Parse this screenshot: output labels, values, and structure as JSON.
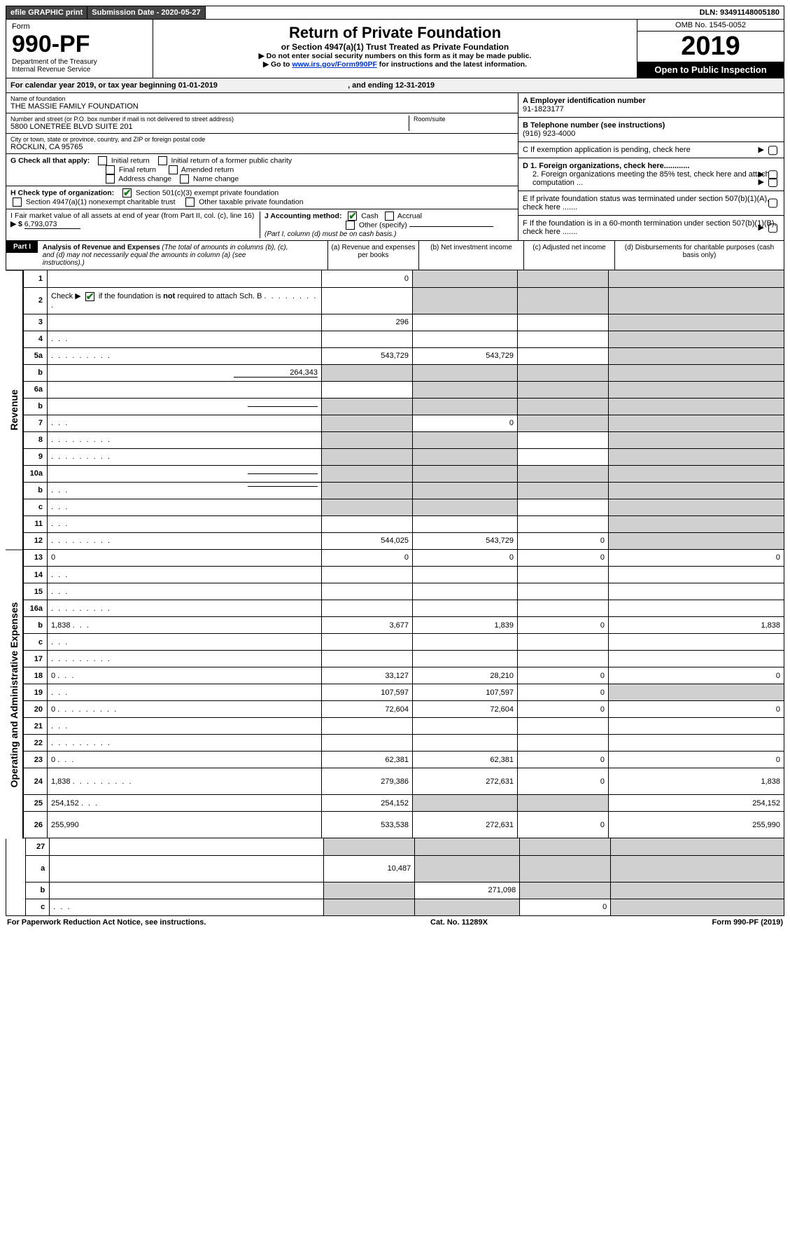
{
  "topbar": {
    "efile": "efile GRAPHIC print",
    "submission_label": "Submission Date - 2020-05-27",
    "dln": "DLN: 93491148005180"
  },
  "header": {
    "form_word": "Form",
    "form_number": "990-PF",
    "dept": "Department of the Treasury",
    "irs": "Internal Revenue Service",
    "title": "Return of Private Foundation",
    "subtitle": "or Section 4947(a)(1) Trust Treated as Private Foundation",
    "instr1": "▶ Do not enter social security numbers on this form as it may be made public.",
    "instr2_pre": "▶ Go to ",
    "instr2_link": "www.irs.gov/Form990PF",
    "instr2_post": " for instructions and the latest information.",
    "omb": "OMB No. 1545-0052",
    "year": "2019",
    "open": "Open to Public Inspection"
  },
  "cal": {
    "text_pre": "For calendar year 2019, or tax year beginning ",
    "begin": "01-01-2019",
    "mid": " , and ending ",
    "end": "12-31-2019"
  },
  "info": {
    "name_label": "Name of foundation",
    "name": "THE MASSIE FAMILY FOUNDATION",
    "addr_label": "Number and street (or P.O. box number if mail is not delivered to street address)",
    "addr": "5800 LONETREE BLVD SUITE 201",
    "room_label": "Room/suite",
    "city_label": "City or town, state or province, country, and ZIP or foreign postal code",
    "city": "ROCKLIN, CA  95765",
    "a_label": "A Employer identification number",
    "ein": "91-1823177",
    "b_label": "B Telephone number (see instructions)",
    "phone": "(916) 923-4000",
    "c_label": "C If exemption application is pending, check here",
    "d1": "D 1. Foreign organizations, check here............",
    "d2": "2. Foreign organizations meeting the 85% test, check here and attach computation ...",
    "e": "E  If private foundation status was terminated under section 507(b)(1)(A), check here .......",
    "f": "F  If the foundation is in a 60-month termination under section 507(b)(1)(B), check here ......."
  },
  "g": {
    "label": "G Check all that apply:",
    "initial": "Initial return",
    "initial_former": "Initial return of a former public charity",
    "final": "Final return",
    "amended": "Amended return",
    "address": "Address change",
    "name_change": "Name change"
  },
  "h": {
    "label": "H Check type of organization:",
    "c3": "Section 501(c)(3) exempt private foundation",
    "trust": "Section 4947(a)(1) nonexempt charitable trust",
    "other_tax": "Other taxable private foundation"
  },
  "i": {
    "label": "I Fair market value of all assets at end of year (from Part II, col. (c), line 16)",
    "arrow": "▶ $",
    "value": "6,793,073"
  },
  "j": {
    "label": "J Accounting method:",
    "cash": "Cash",
    "accrual": "Accrual",
    "other": "Other (specify)",
    "note": "(Part I, column (d) must be on cash basis.)"
  },
  "part1": {
    "tag": "Part I",
    "title": "Analysis of Revenue and Expenses",
    "note": "(The total of amounts in columns (b), (c), and (d) may not necessarily equal the amounts in column (a) (see instructions).)",
    "col_a": "(a)   Revenue and expenses per books",
    "col_b": "(b)  Net investment income",
    "col_c": "(c)  Adjusted net income",
    "col_d": "(d)  Disbursements for charitable purposes (cash basis only)"
  },
  "side": {
    "revenue": "Revenue",
    "expenses": "Operating and Administrative Expenses"
  },
  "rows": [
    {
      "n": "1",
      "d": "",
      "a": "0",
      "b": "",
      "c": "",
      "sb": true,
      "sc": true,
      "sd": true
    },
    {
      "n": "2",
      "d": "",
      "a": "",
      "b": "",
      "c": "",
      "sb": true,
      "sc": true,
      "sd": true,
      "checked": true,
      "tall": true
    },
    {
      "n": "3",
      "d": "",
      "a": "296",
      "b": "",
      "c": "",
      "sd": true
    },
    {
      "n": "4",
      "d": "",
      "a": "",
      "b": "",
      "c": "",
      "sd": true,
      "dots": "short"
    },
    {
      "n": "5a",
      "d": "",
      "a": "543,729",
      "b": "543,729",
      "c": "",
      "sd": true,
      "dots": "long"
    },
    {
      "n": "b",
      "d": "",
      "a": "",
      "b": "",
      "c": "",
      "sd": true,
      "inline_val": "264,343",
      "sa": true,
      "sb": true,
      "sc": true
    },
    {
      "n": "6a",
      "d": "",
      "a": "",
      "b": "",
      "c": "",
      "sb": true,
      "sc": true,
      "sd": true
    },
    {
      "n": "b",
      "d": "",
      "a": "",
      "b": "",
      "c": "",
      "sa": true,
      "sb": true,
      "sc": true,
      "sd": true,
      "inline_line": true
    },
    {
      "n": "7",
      "d": "",
      "a": "",
      "b": "0",
      "c": "",
      "sa": true,
      "sc": true,
      "sd": true,
      "dots": "short"
    },
    {
      "n": "8",
      "d": "",
      "a": "",
      "b": "",
      "c": "",
      "sa": true,
      "sb": true,
      "sd": true,
      "dots": "long"
    },
    {
      "n": "9",
      "d": "",
      "a": "",
      "b": "",
      "c": "",
      "sa": true,
      "sb": true,
      "sd": true,
      "dots": "long"
    },
    {
      "n": "10a",
      "d": "",
      "a": "",
      "b": "",
      "c": "",
      "sa": true,
      "sb": true,
      "sc": true,
      "sd": true,
      "inline_line": true
    },
    {
      "n": "b",
      "d": "",
      "a": "",
      "b": "",
      "c": "",
      "sa": true,
      "sb": true,
      "sc": true,
      "sd": true,
      "dots": "short",
      "inline_line": true
    },
    {
      "n": "c",
      "d": "",
      "a": "",
      "b": "",
      "c": "",
      "sa": true,
      "sb": true,
      "sd": true,
      "dots": "short"
    },
    {
      "n": "11",
      "d": "",
      "a": "",
      "b": "",
      "c": "",
      "sd": true,
      "dots": "short"
    },
    {
      "n": "12",
      "d": "",
      "a": "544,025",
      "b": "543,729",
      "c": "0",
      "sd": true,
      "dots": "long"
    }
  ],
  "exp_rows": [
    {
      "n": "13",
      "d": "0",
      "a": "0",
      "b": "0",
      "c": "0"
    },
    {
      "n": "14",
      "d": "",
      "a": "",
      "b": "",
      "c": "",
      "dots": "short"
    },
    {
      "n": "15",
      "d": "",
      "a": "",
      "b": "",
      "c": "",
      "dots": "short"
    },
    {
      "n": "16a",
      "d": "",
      "a": "",
      "b": "",
      "c": "",
      "dots": "long"
    },
    {
      "n": "b",
      "d": "1,838",
      "a": "3,677",
      "b": "1,839",
      "c": "0",
      "dots": "short"
    },
    {
      "n": "c",
      "d": "",
      "a": "",
      "b": "",
      "c": "",
      "dots": "short"
    },
    {
      "n": "17",
      "d": "",
      "a": "",
      "b": "",
      "c": "",
      "dots": "long"
    },
    {
      "n": "18",
      "d": "0",
      "a": "33,127",
      "b": "28,210",
      "c": "0",
      "dots": "short"
    },
    {
      "n": "19",
      "d": "",
      "a": "107,597",
      "b": "107,597",
      "c": "0",
      "sd": true,
      "dots": "short"
    },
    {
      "n": "20",
      "d": "0",
      "a": "72,604",
      "b": "72,604",
      "c": "0",
      "dots": "long"
    },
    {
      "n": "21",
      "d": "",
      "a": "",
      "b": "",
      "c": "",
      "dots": "short"
    },
    {
      "n": "22",
      "d": "",
      "a": "",
      "b": "",
      "c": "",
      "dots": "long"
    },
    {
      "n": "23",
      "d": "0",
      "a": "62,381",
      "b": "62,381",
      "c": "0",
      "dots": "short"
    },
    {
      "n": "24",
      "d": "1,838",
      "a": "279,386",
      "b": "272,631",
      "c": "0",
      "dots": "long",
      "tall": true
    },
    {
      "n": "25",
      "d": "254,152",
      "a": "254,152",
      "b": "",
      "c": "",
      "sb": true,
      "sc": true,
      "dots": "short"
    },
    {
      "n": "26",
      "d": "255,990",
      "a": "533,538",
      "b": "272,631",
      "c": "0",
      "tall": true
    }
  ],
  "bottom_rows": [
    {
      "n": "27",
      "d": "",
      "a": "",
      "b": "",
      "c": "",
      "sa": true,
      "sb": true,
      "sc": true,
      "sd": true
    },
    {
      "n": "a",
      "d": "",
      "a": "10,487",
      "b": "",
      "c": "",
      "sb": true,
      "sc": true,
      "sd": true,
      "tall": true
    },
    {
      "n": "b",
      "d": "",
      "a": "",
      "b": "271,098",
      "c": "",
      "sa": true,
      "sc": true,
      "sd": true
    },
    {
      "n": "c",
      "d": "",
      "a": "",
      "b": "",
      "c": "0",
      "sa": true,
      "sb": true,
      "sd": true,
      "dots": "short"
    }
  ],
  "footer": {
    "left": "For Paperwork Reduction Act Notice, see instructions.",
    "mid": "Cat. No. 11289X",
    "right": "Form 990-PF (2019)"
  }
}
